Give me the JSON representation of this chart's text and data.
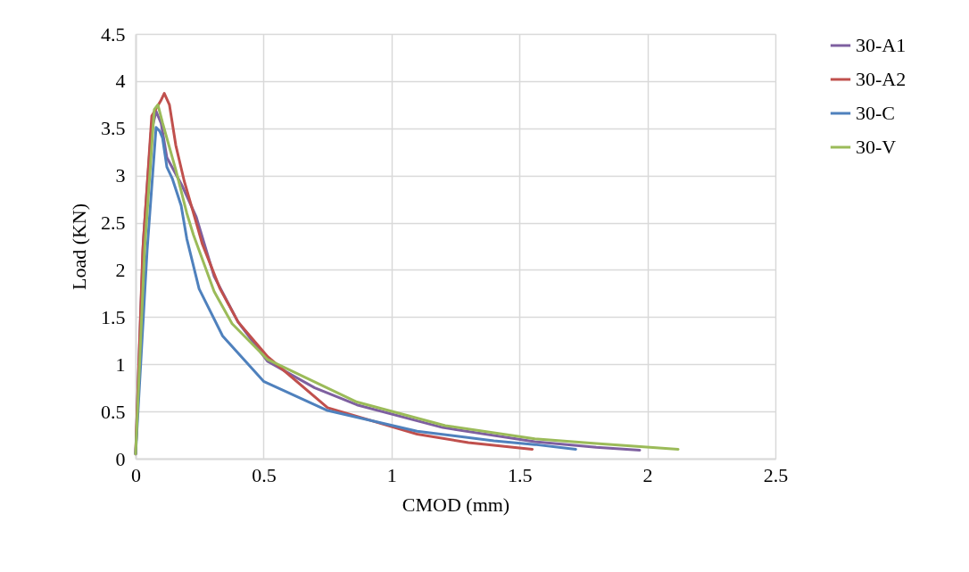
{
  "chart_data": {
    "type": "line",
    "xlabel": "CMOD (mm)",
    "ylabel": "Load (KN)",
    "xlim": [
      0,
      2.5
    ],
    "ylim": [
      0,
      4.5
    ],
    "xticks": [
      0,
      0.5,
      1,
      1.5,
      2,
      2.5
    ],
    "yticks": [
      0,
      0.5,
      1,
      1.5,
      2,
      2.5,
      3,
      3.5,
      4,
      4.5
    ],
    "grid": true,
    "legend": "right",
    "line_style": "solid",
    "marker": "none",
    "series": [
      {
        "name": "30-A1",
        "color": "#7e60a0",
        "x": [
          0,
          0.03,
          0.06,
          0.08,
          0.1,
          0.122,
          0.18,
          0.237,
          0.307,
          0.4,
          0.516,
          0.7,
          0.865,
          1.2,
          1.56,
          1.8,
          1.97
        ],
        "values": [
          0.05,
          2.3,
          3.45,
          3.68,
          3.55,
          3.19,
          2.9,
          2.56,
          1.93,
          1.45,
          1.03,
          0.75,
          0.57,
          0.33,
          0.18,
          0.12,
          0.09
        ]
      },
      {
        "name": "30-A2",
        "color": "#c0504d",
        "x": [
          0,
          0.028,
          0.063,
          0.098,
          0.112,
          0.132,
          0.157,
          0.19,
          0.237,
          0.26,
          0.33,
          0.4,
          0.516,
          0.75,
          1.1,
          1.3,
          1.55
        ],
        "values": [
          0.05,
          2.21,
          3.63,
          3.79,
          3.87,
          3.75,
          3.32,
          2.94,
          2.5,
          2.28,
          1.8,
          1.45,
          1.08,
          0.54,
          0.26,
          0.17,
          0.1
        ]
      },
      {
        "name": "30-C",
        "color": "#4f81bd",
        "x": [
          0,
          0.045,
          0.08,
          0.094,
          0.105,
          0.122,
          0.143,
          0.178,
          0.2,
          0.248,
          0.34,
          0.5,
          0.75,
          1.1,
          1.4,
          1.56,
          1.72
        ],
        "values": [
          0.05,
          2.21,
          3.51,
          3.47,
          3.4,
          3.09,
          2.97,
          2.68,
          2.33,
          1.8,
          1.3,
          0.82,
          0.51,
          0.29,
          0.19,
          0.15,
          0.1
        ]
      },
      {
        "name": "30-V",
        "color": "#9bbb59",
        "x": [
          0,
          0.035,
          0.073,
          0.087,
          0.105,
          0.157,
          0.2,
          0.226,
          0.307,
          0.377,
          0.516,
          0.865,
          1.21,
          1.56,
          1.8,
          2.12
        ],
        "values": [
          0.05,
          2.21,
          3.7,
          3.75,
          3.56,
          3.06,
          2.6,
          2.37,
          1.77,
          1.43,
          1.05,
          0.6,
          0.35,
          0.21,
          0.16,
          0.1
        ]
      }
    ]
  }
}
